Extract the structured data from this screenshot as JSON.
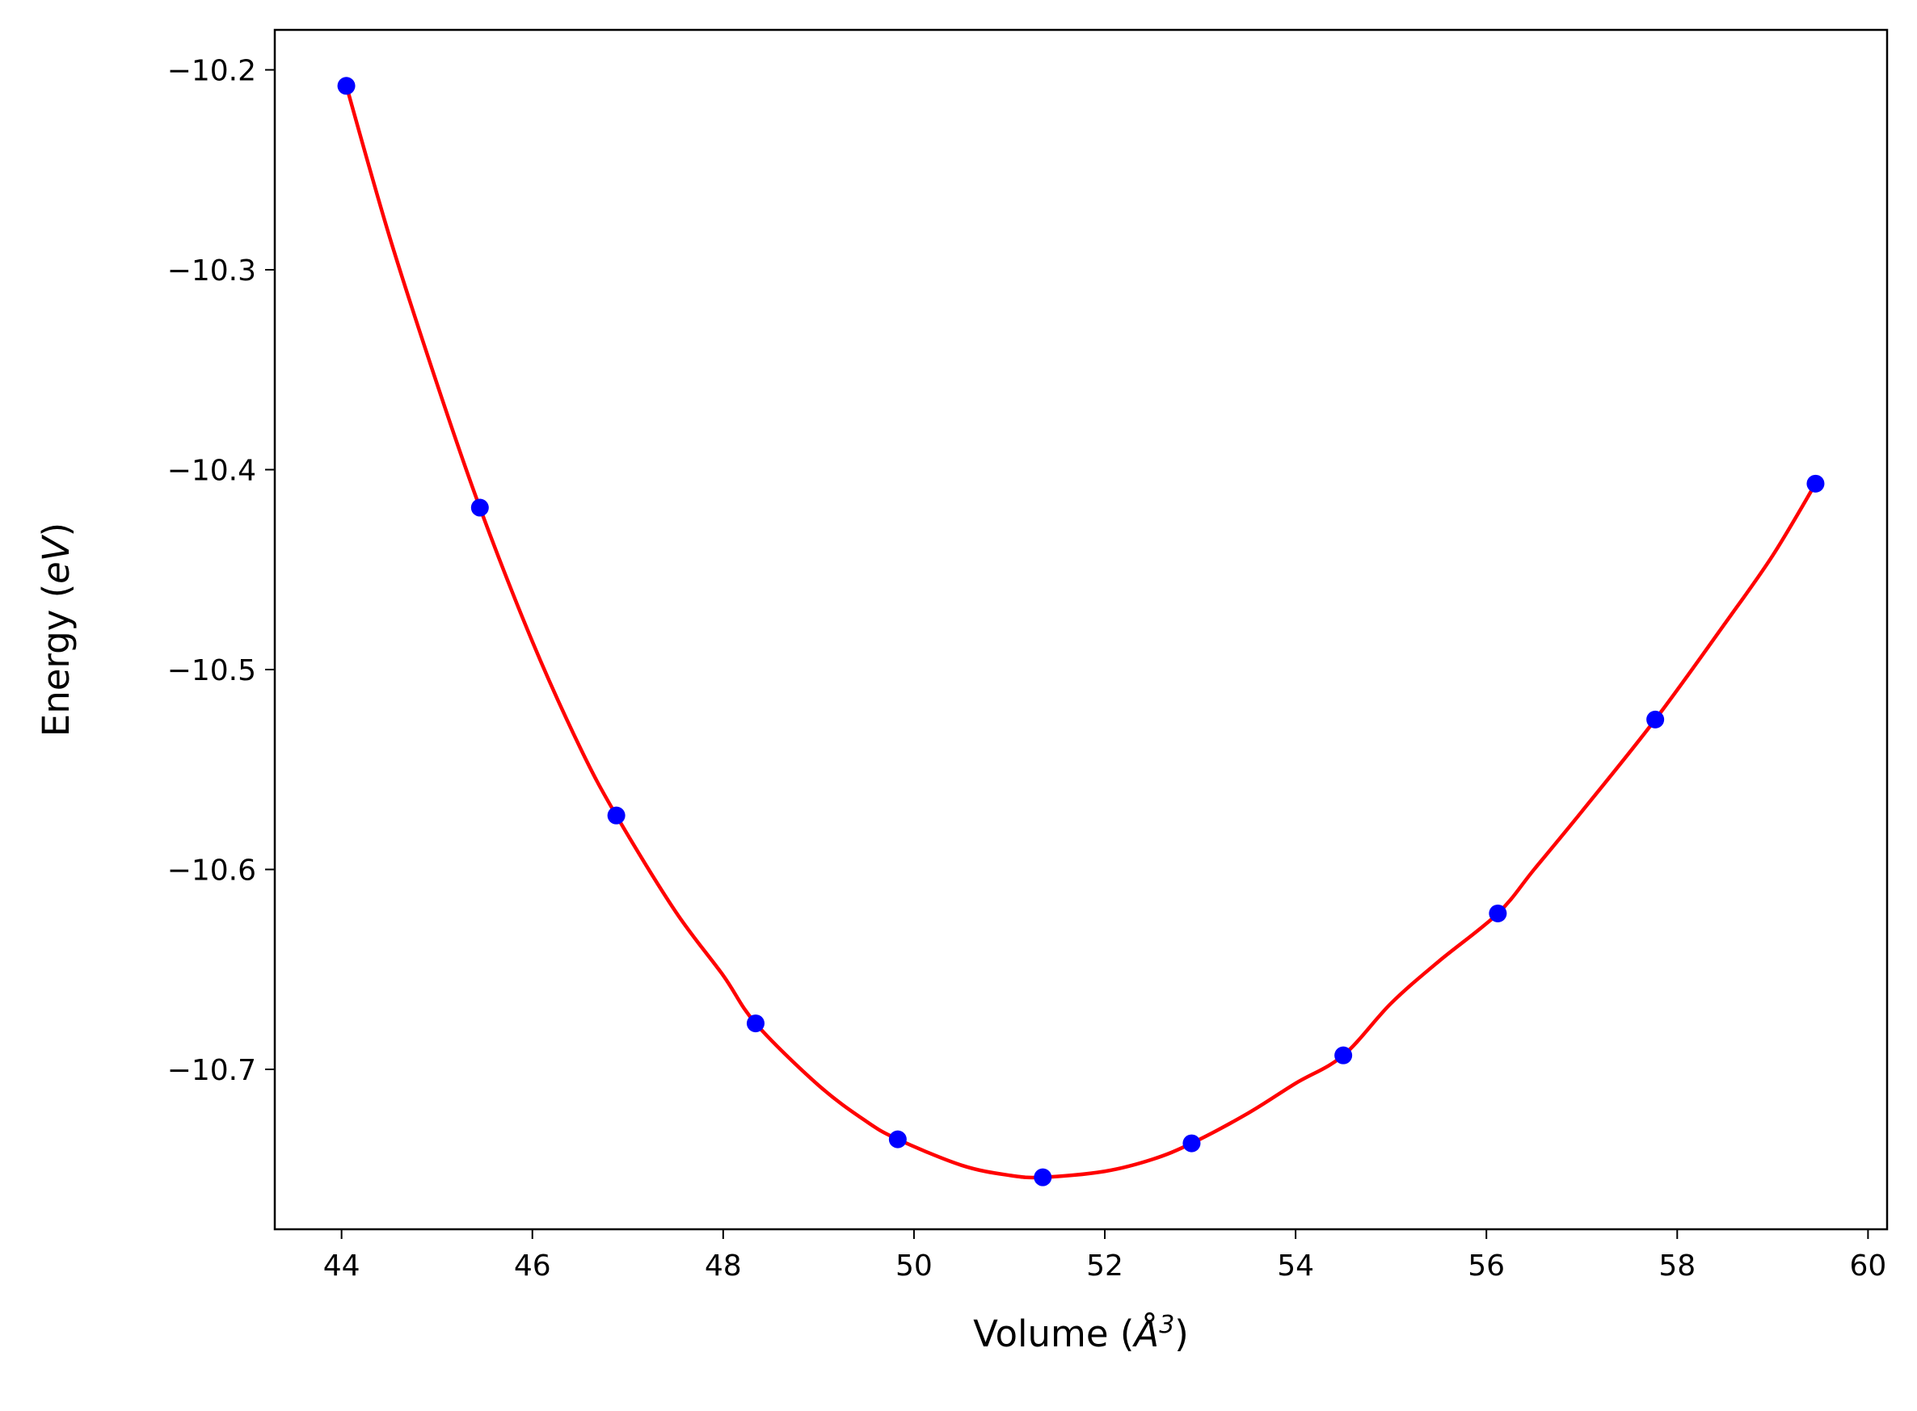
{
  "chart_data": {
    "type": "line",
    "title": "",
    "xlabel": "Volume (Å³)",
    "xlabel_parts": {
      "prefix": "Volume (",
      "symbol": "Å",
      "exponent": "3",
      "suffix": ")"
    },
    "ylabel": "Energy (eV)",
    "ylabel_parts": {
      "prefix": "Energy (",
      "unit": "eV",
      "suffix": ")"
    },
    "xlim": [
      43.3,
      60.2
    ],
    "ylim": [
      -10.78,
      -10.18
    ],
    "xticks": [
      44,
      46,
      48,
      50,
      52,
      54,
      56,
      58,
      60
    ],
    "yticks": [
      -10.2,
      -10.3,
      -10.4,
      -10.5,
      -10.6,
      -10.7
    ],
    "ytick_labels": [
      "−10.2",
      "−10.3",
      "−10.4",
      "−10.5",
      "−10.6",
      "−10.7"
    ],
    "grid": false,
    "legend": "none",
    "series": [
      {
        "kind": "points",
        "color": "#0000ff",
        "x": [
          44.05,
          45.45,
          46.88,
          48.34,
          49.83,
          51.35,
          52.91,
          54.5,
          56.12,
          57.77,
          59.45
        ],
        "y": [
          -10.208,
          -10.419,
          -10.573,
          -10.677,
          -10.735,
          -10.754,
          -10.737,
          -10.693,
          -10.622,
          -10.525,
          -10.407
        ]
      },
      {
        "kind": "fit-curve",
        "color": "#ff0000",
        "x": [
          44.05,
          44.5,
          45.0,
          45.45,
          46.0,
          46.5,
          46.88,
          47.5,
          48.0,
          48.34,
          49.0,
          49.5,
          49.83,
          50.5,
          51.0,
          51.35,
          52.0,
          52.5,
          52.91,
          53.5,
          54.0,
          54.5,
          55.0,
          55.5,
          56.12,
          56.5,
          57.0,
          57.77,
          58.5,
          59.0,
          59.45
        ],
        "y": [
          -10.208,
          -10.283,
          -10.357,
          -10.419,
          -10.486,
          -10.539,
          -10.573,
          -10.621,
          -10.653,
          -10.677,
          -10.708,
          -10.726,
          -10.735,
          -10.748,
          -10.753,
          -10.754,
          -10.751,
          -10.745,
          -10.737,
          -10.722,
          -10.707,
          -10.693,
          -10.667,
          -10.646,
          -10.622,
          -10.6,
          -10.571,
          -10.525,
          -10.477,
          -10.443,
          -10.407
        ]
      }
    ]
  }
}
